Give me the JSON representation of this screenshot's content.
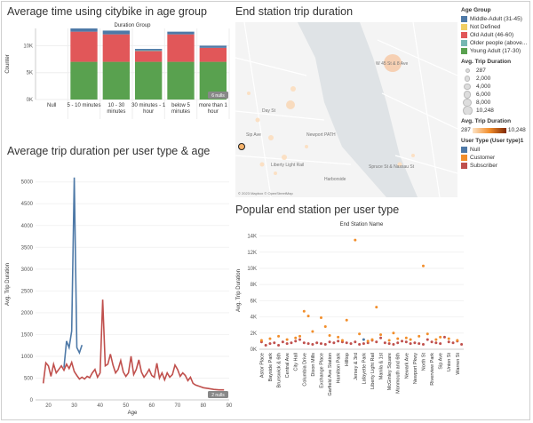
{
  "titles": {
    "age_group_chart": "Average time using citybike in age group",
    "map": "End station trip duration",
    "line_chart": "Average trip duration per user type & age",
    "scatter": "Popular end station per user type"
  },
  "chart_data": [
    {
      "type": "bar",
      "subtitle": "Duration Group",
      "ylabel": "Counter",
      "categories": [
        "Null",
        "5 - 10 minutes",
        "10 - 30 minutes",
        "30 minutes - 1 hour",
        "below 5 minutes",
        "more than 1 hour"
      ],
      "category_lines": [
        [
          "Null"
        ],
        [
          "5 - 10 minutes"
        ],
        [
          "10 - 30",
          "minutes"
        ],
        [
          "30 minutes - 1",
          "hour"
        ],
        [
          "below 5",
          "minutes"
        ],
        [
          "more than 1",
          "hour"
        ]
      ],
      "yticks": [
        {
          "v": 0,
          "label": "0K"
        },
        {
          "v": 5000,
          "label": "5K"
        },
        {
          "v": 10000,
          "label": "10K"
        }
      ],
      "ylim": [
        0,
        13200
      ],
      "null_badge": "6 nulls",
      "series": [
        {
          "name": "Young Adult (17-30)",
          "color": "#59a14f",
          "values": [
            0,
            7000,
            7000,
            7000,
            7000,
            7000
          ]
        },
        {
          "name": "Old Adult (46-60)",
          "color": "#e15759",
          "values": [
            0,
            5600,
            5100,
            2000,
            5100,
            2600
          ]
        },
        {
          "name": "Older people (above...",
          "color": "#76b7b2",
          "values": [
            0,
            0,
            0,
            150,
            0,
            0
          ]
        },
        {
          "name": "Middle-Adult (31-45)",
          "color": "#4e79a7",
          "values": [
            0,
            600,
            700,
            250,
            500,
            400
          ]
        }
      ]
    },
    {
      "type": "line",
      "xlabel": "Age",
      "ylabel": "Avg. Trip Duration",
      "xlim": [
        15,
        90
      ],
      "ylim": [
        0,
        5300
      ],
      "xticks": [
        20,
        30,
        40,
        50,
        60,
        70,
        80,
        90
      ],
      "yticks": [
        0,
        500,
        1000,
        1500,
        2000,
        2500,
        3000,
        3500,
        4000,
        4500,
        5000
      ],
      "null_badge": "2 nulls",
      "series": [
        {
          "name": "Subscriber",
          "color": "#c0504d",
          "points": [
            [
              18,
              380
            ],
            [
              19,
              850
            ],
            [
              20,
              780
            ],
            [
              21,
              540
            ],
            [
              22,
              820
            ],
            [
              23,
              620
            ],
            [
              24,
              700
            ],
            [
              25,
              780
            ],
            [
              26,
              680
            ],
            [
              27,
              820
            ],
            [
              28,
              720
            ],
            [
              29,
              860
            ],
            [
              30,
              650
            ],
            [
              31,
              560
            ],
            [
              32,
              480
            ],
            [
              33,
              520
            ],
            [
              34,
              480
            ],
            [
              35,
              540
            ],
            [
              36,
              510
            ],
            [
              37,
              620
            ],
            [
              38,
              700
            ],
            [
              39,
              520
            ],
            [
              40,
              620
            ],
            [
              41,
              2300
            ],
            [
              42,
              780
            ],
            [
              43,
              820
            ],
            [
              44,
              1050
            ],
            [
              45,
              800
            ],
            [
              46,
              620
            ],
            [
              47,
              700
            ],
            [
              48,
              900
            ],
            [
              49,
              640
            ],
            [
              50,
              540
            ],
            [
              51,
              620
            ],
            [
              52,
              1000
            ],
            [
              53,
              580
            ],
            [
              54,
              700
            ],
            [
              55,
              920
            ],
            [
              56,
              640
            ],
            [
              57,
              520
            ],
            [
              58,
              600
            ],
            [
              59,
              700
            ],
            [
              60,
              560
            ],
            [
              61,
              520
            ],
            [
              62,
              840
            ],
            [
              63,
              500
            ],
            [
              64,
              620
            ],
            [
              65,
              460
            ],
            [
              66,
              620
            ],
            [
              67,
              520
            ],
            [
              68,
              580
            ],
            [
              69,
              800
            ],
            [
              70,
              700
            ],
            [
              71,
              540
            ],
            [
              72,
              620
            ],
            [
              73,
              560
            ],
            [
              74,
              440
            ],
            [
              75,
              520
            ],
            [
              76,
              380
            ],
            [
              77,
              340
            ],
            [
              78,
              320
            ],
            [
              79,
              300
            ],
            [
              80,
              280
            ],
            [
              82,
              260
            ],
            [
              84,
              240
            ],
            [
              86,
              230
            ],
            [
              88,
              230
            ]
          ]
        },
        {
          "name": "Customer",
          "color": "#4e79a7",
          "points": [
            [
              26,
              740
            ],
            [
              27,
              1350
            ],
            [
              28,
              1200
            ],
            [
              29,
              1580
            ],
            [
              30,
              5100
            ],
            [
              31,
              1200
            ],
            [
              32,
              1080
            ],
            [
              33,
              1260
            ]
          ]
        }
      ]
    },
    {
      "type": "scatter",
      "subtitle": "End Station Name",
      "ylabel": "Avg. Trip Duration",
      "ylim": [
        0,
        14500
      ],
      "yticks": [
        {
          "v": 0,
          "label": "0K"
        },
        {
          "v": 2000,
          "label": "2K"
        },
        {
          "v": 4000,
          "label": "4K"
        },
        {
          "v": 6000,
          "label": "6K"
        },
        {
          "v": 8000,
          "label": "8K"
        },
        {
          "v": 10000,
          "label": "10K"
        },
        {
          "v": 12000,
          "label": "12K"
        },
        {
          "v": 14000,
          "label": "14K"
        }
      ],
      "categories": [
        "Astor Place",
        "Bayside Park",
        "Brunswick & 6th",
        "Central Ave",
        "City Hall",
        "Columbia Drive",
        "Dixon Mills",
        "Exchange Place",
        "Garfield Ave Station",
        "Hamilton Park",
        "Hilltop",
        "Jersey & 3rd",
        "Lafayette Park",
        "Liberty Light Rail",
        "Manila & 1st",
        "McGinley Square",
        "Monmouth and 6th",
        "Newark Ave",
        "Newport Pkwy",
        "North St",
        "Riverview Park",
        "Sip Ave",
        "Union St",
        "Warren St"
      ],
      "tick_every": 2,
      "series": [
        {
          "name": "Subscriber",
          "color": "#c0504d",
          "values": [
            900,
            500,
            700,
            800,
            500,
            900,
            700,
            800,
            1000,
            1200,
            800,
            700,
            600,
            800,
            700,
            600,
            900,
            800,
            1000,
            900,
            800,
            700,
            900,
            600,
            700,
            800,
            1100,
            900,
            1400,
            800,
            700,
            600,
            800,
            1000,
            900,
            700,
            800,
            700,
            600,
            1200,
            900,
            800,
            700,
            1500,
            900,
            800,
            1000,
            600
          ]
        },
        {
          "name": "Customer",
          "color": "#f28e2b",
          "values": [
            1100,
            null,
            1300,
            null,
            1600,
            null,
            1200,
            null,
            1400,
            1600,
            4700,
            4100,
            2200,
            null,
            3900,
            2800,
            1700,
            null,
            1500,
            1100,
            3600,
            null,
            13500,
            1900,
            null,
            1000,
            1200,
            5200,
            1800,
            null,
            1100,
            2000,
            1300,
            null,
            1400,
            1200,
            null,
            1600,
            10300,
            1900,
            null,
            1200,
            1500,
            null,
            1300,
            null,
            1100,
            null
          ]
        },
        {
          "name": "Null",
          "color": "#4e79a7",
          "values": [
            null,
            null,
            null,
            null,
            null,
            null,
            null,
            null,
            null,
            null,
            null,
            null,
            null,
            null,
            null,
            null,
            null,
            null,
            null,
            null,
            null,
            null,
            null,
            null,
            1200,
            null,
            null,
            null,
            null,
            null,
            null,
            null,
            null,
            null,
            null,
            null,
            null,
            null,
            null,
            null,
            null,
            null,
            null,
            null,
            null,
            null,
            null,
            null
          ]
        }
      ]
    }
  ],
  "map": {
    "labels": [
      "W 45 St & 8 Ave",
      "Day St",
      "Newport PATH",
      "Liberty Light Rail",
      "Sip Ave",
      "Spruce St & Nassau St",
      "Harborside"
    ],
    "copyright": "© 2023 Mapbox © OpenStreetMap"
  },
  "legend": {
    "age_group_title": "Age Group",
    "age_groups": [
      {
        "label": "Middle-Adult (31-45)",
        "color": "#4e79a7"
      },
      {
        "label": "Not Defined",
        "color": "#f1ce63"
      },
      {
        "label": "Old Adult (46-60)",
        "color": "#e15759"
      },
      {
        "label": "Older people (above...",
        "color": "#76b7b2"
      },
      {
        "label": "Young Adult (17-30)",
        "color": "#59a14f"
      }
    ],
    "size_title": "Avg. Trip Duration",
    "sizes": [
      "287",
      "2,000",
      "4,000",
      "6,000",
      "8,000",
      "10,248"
    ],
    "color_title": "Avg. Trip Duration",
    "color_min": "287",
    "color_max": "10,248",
    "user_type_title": "User Type (User type)1",
    "user_types": [
      {
        "label": "Null",
        "color": "#4e79a7"
      },
      {
        "label": "Customer",
        "color": "#f28e2b"
      },
      {
        "label": "Subscriber",
        "color": "#c0504d"
      }
    ]
  }
}
